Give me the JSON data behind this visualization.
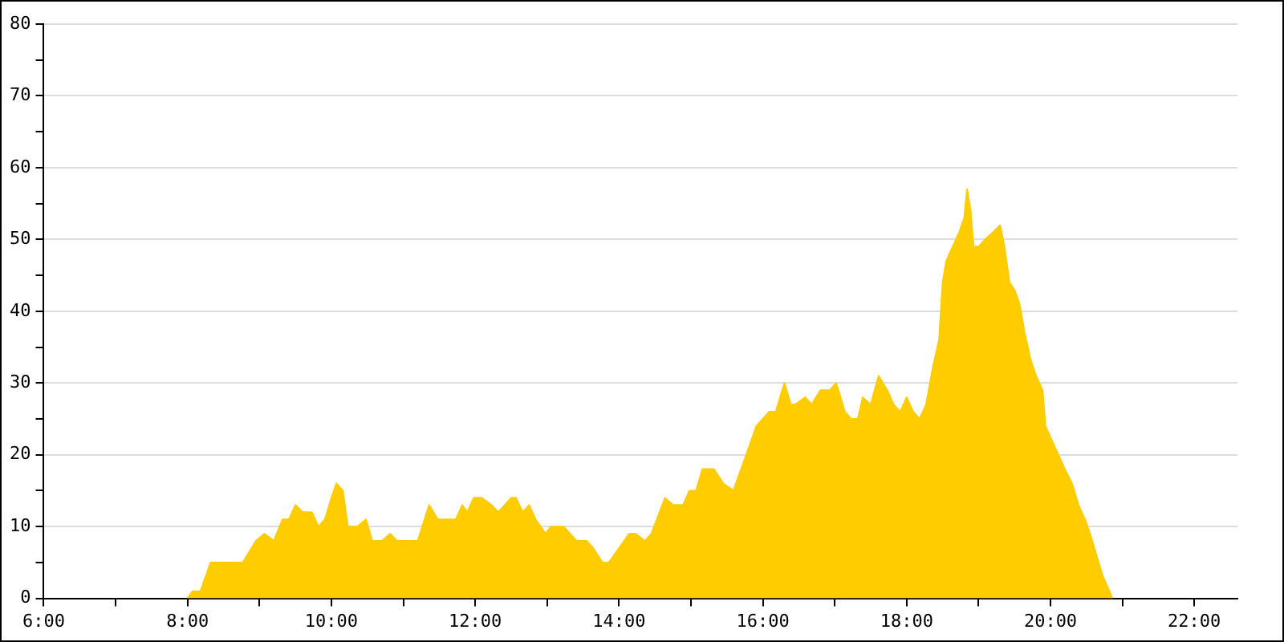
{
  "chart_data": {
    "type": "area",
    "marker": "none",
    "grid": "y",
    "legend": false,
    "xlim": [
      6,
      22.6
    ],
    "xticks": [
      {
        "value": 6,
        "label": "6:00"
      },
      {
        "value": 7,
        "label": null
      },
      {
        "value": 8,
        "label": "8:00"
      },
      {
        "value": 9,
        "label": null
      },
      {
        "value": 10,
        "label": "10:00"
      },
      {
        "value": 11,
        "label": null
      },
      {
        "value": 12,
        "label": "12:00"
      },
      {
        "value": 13,
        "label": null
      },
      {
        "value": 14,
        "label": "14:00"
      },
      {
        "value": 15,
        "label": null
      },
      {
        "value": 16,
        "label": "16:00"
      },
      {
        "value": 17,
        "label": null
      },
      {
        "value": 18,
        "label": "18:00"
      },
      {
        "value": 19,
        "label": null
      },
      {
        "value": 20,
        "label": "20:00"
      },
      {
        "value": 21,
        "label": null
      },
      {
        "value": 22,
        "label": "22:00"
      }
    ],
    "ylim": [
      0,
      80
    ],
    "yticks": [
      0,
      {
        "value": 5,
        "label": null
      },
      10,
      {
        "value": 15,
        "label": null
      },
      20,
      {
        "value": 25,
        "label": null
      },
      30,
      {
        "value": 35,
        "label": null
      },
      40,
      {
        "value": 45,
        "label": null
      },
      50,
      {
        "value": 55,
        "label": null
      },
      60,
      {
        "value": 65,
        "label": null
      },
      70,
      {
        "value": 75,
        "label": null
      },
      80
    ],
    "series": [
      {
        "color": "#ffcc00",
        "x": [
          8.0,
          8.07,
          8.18,
          8.32,
          8.77,
          8.95,
          9.07,
          9.2,
          9.32,
          9.41,
          9.5,
          9.6,
          9.73,
          9.82,
          9.91,
          10.0,
          10.07,
          10.16,
          10.23,
          10.36,
          10.48,
          10.57,
          10.7,
          10.82,
          10.91,
          11.2,
          11.36,
          11.48,
          11.73,
          11.82,
          11.89,
          11.98,
          12.09,
          12.23,
          12.32,
          12.41,
          12.5,
          12.57,
          12.66,
          12.75,
          12.84,
          12.98,
          13.05,
          13.23,
          13.41,
          13.55,
          13.64,
          13.77,
          13.86,
          14.0,
          14.14,
          14.23,
          14.36,
          14.45,
          14.64,
          14.75,
          14.89,
          14.98,
          15.07,
          15.16,
          15.32,
          15.45,
          15.59,
          15.77,
          15.91,
          16.0,
          16.09,
          16.18,
          16.3,
          16.39,
          16.45,
          16.59,
          16.68,
          16.8,
          16.93,
          17.02,
          17.14,
          17.23,
          17.32,
          17.39,
          17.5,
          17.61,
          17.73,
          17.82,
          17.91,
          18.0,
          18.09,
          18.18,
          18.27,
          18.36,
          18.45,
          18.5,
          18.55,
          18.64,
          18.73,
          18.8,
          18.84,
          18.89,
          18.93,
          19.0,
          19.09,
          19.2,
          19.3,
          19.36,
          19.43,
          19.5,
          19.57,
          19.64,
          19.73,
          19.8,
          19.89,
          19.93,
          20.02,
          20.11,
          20.2,
          20.3,
          20.39,
          20.48,
          20.55,
          20.64,
          20.73,
          20.82,
          20.86
        ],
        "values": [
          0,
          1,
          1,
          5,
          5,
          8,
          9,
          8,
          11,
          11,
          13,
          12,
          12,
          10,
          11,
          14,
          16,
          15,
          10,
          10,
          11,
          8,
          8,
          9,
          8,
          8,
          13,
          11,
          11,
          13,
          12,
          14,
          14,
          13,
          12,
          13,
          14,
          14,
          12,
          13,
          11,
          9,
          10,
          10,
          8,
          8,
          7,
          5,
          5,
          7,
          9,
          9,
          8,
          9,
          14,
          13,
          13,
          15,
          15,
          18,
          18,
          16,
          15,
          20,
          24,
          25,
          26,
          26,
          30,
          27,
          27,
          28,
          27,
          29,
          29,
          30,
          26,
          25,
          25,
          28,
          27,
          31,
          29,
          27,
          26,
          28,
          26,
          25,
          27,
          32,
          36,
          44,
          47,
          49,
          51,
          53,
          57,
          54,
          49,
          49,
          50,
          51,
          52,
          49,
          44,
          43,
          41,
          37,
          33,
          31,
          29,
          24,
          22,
          20,
          18,
          16,
          13,
          11,
          9,
          6,
          3,
          1,
          0
        ]
      }
    ]
  }
}
